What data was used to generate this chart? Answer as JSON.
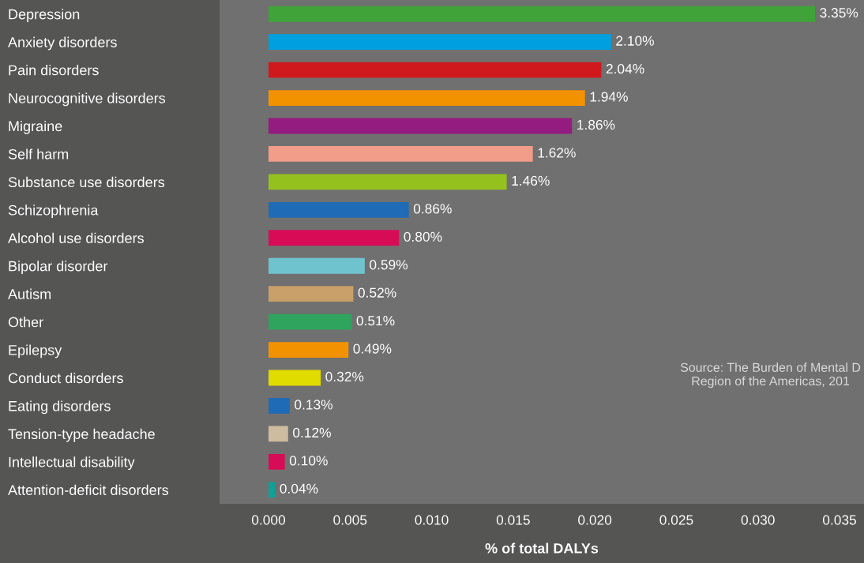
{
  "chart_data": {
    "type": "bar",
    "orientation": "horizontal",
    "xlabel": "% of total DALYs",
    "categories": [
      "Depression",
      "Anxiety disorders",
      "Pain disorders",
      "Neurocognitive disorders",
      "Migraine",
      "Self harm",
      "Substance use disorders",
      "Schizophrenia",
      "Alcohol use disorders",
      "Bipolar disorder",
      "Autism",
      "Other",
      "Epilepsy",
      "Conduct disorders",
      "Eating disorders",
      "Tension-type headache",
      "Intellectual disability",
      "Attention-deficit disorders"
    ],
    "values": [
      0.0335,
      0.021,
      0.0204,
      0.0194,
      0.0186,
      0.0162,
      0.0146,
      0.0086,
      0.008,
      0.0059,
      0.0052,
      0.0051,
      0.0049,
      0.0032,
      0.0013,
      0.0012,
      0.001,
      0.0004
    ],
    "value_labels": [
      "3.35%",
      "2.10%",
      "2.04%",
      "1.94%",
      "1.86%",
      "1.62%",
      "1.46%",
      "0.86%",
      "0.80%",
      "0.59%",
      "0.52%",
      "0.51%",
      "0.49%",
      "0.32%",
      "0.13%",
      "0.12%",
      "0.10%",
      "0.04%"
    ],
    "colors": [
      "#3fa33a",
      "#00a0e0",
      "#d0191c",
      "#f39200",
      "#941b80",
      "#f29c8a",
      "#95c11f",
      "#1f6bb5",
      "#d80c56",
      "#6fc3cf",
      "#c9a06a",
      "#2ea45e",
      "#f39200",
      "#e0dc00",
      "#1f6bb5",
      "#cdbca0",
      "#d80c56",
      "#10a096"
    ],
    "xlim": [
      -0.003,
      0.0365
    ],
    "xticks": [
      {
        "value": 0,
        "label": "0.000"
      },
      {
        "value": 0.005,
        "label": "0.005"
      },
      {
        "value": 0.01,
        "label": "0.010"
      },
      {
        "value": 0.015,
        "label": "0.015"
      },
      {
        "value": 0.02,
        "label": "0.020"
      },
      {
        "value": 0.025,
        "label": "0.025"
      },
      {
        "value": 0.03,
        "label": "0.030"
      },
      {
        "value": 0.035,
        "label": "0.035"
      }
    ],
    "grid": false,
    "annotations": [
      "Source: The Burden of Mental D\nRegion of the Americas, 201"
    ]
  }
}
